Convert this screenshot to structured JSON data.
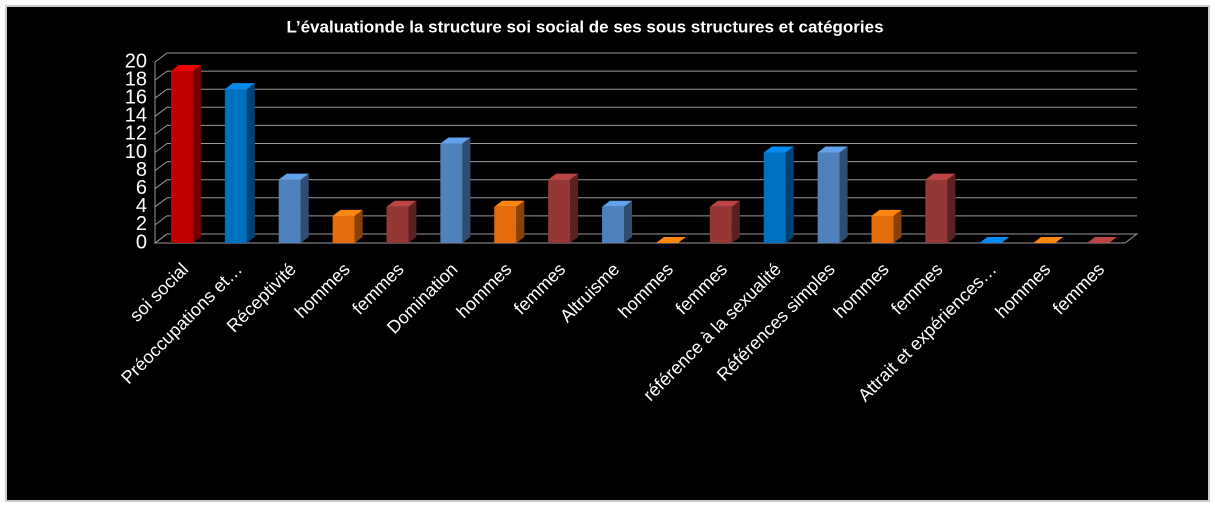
{
  "chart_data": {
    "type": "bar3d",
    "title": "L’évaluationde la structure soi social de ses sous structures et catégories",
    "categories": [
      "soi social",
      "Préoccupations et…",
      "Réceptivité",
      "hommes",
      "femmes",
      "Domination",
      "hommes",
      "femmes",
      "Altruisme",
      "hommes",
      "femmes",
      "référence à la sexualité",
      "Références simples",
      "hommes",
      "femmes",
      "Attrait et expériences…",
      "hommes",
      "femmes"
    ],
    "values": [
      19,
      17,
      7,
      3,
      4,
      11,
      4,
      7,
      4,
      0,
      4,
      10,
      10,
      3,
      7,
      0,
      0,
      0
    ],
    "colors": [
      "#c00000",
      "#0070c0",
      "#4f81bd",
      "#e46c0a",
      "#953735",
      "#4f81bd",
      "#e46c0a",
      "#953735",
      "#4f81bd",
      "#e46c0a",
      "#953735",
      "#0070c0",
      "#4f81bd",
      "#e46c0a",
      "#953735",
      "#0070c0",
      "#e46c0a",
      "#953735"
    ],
    "ylim": [
      0,
      20
    ],
    "yticks": [
      0,
      2,
      4,
      6,
      8,
      10,
      12,
      14,
      16,
      18,
      20
    ],
    "grid": true
  }
}
